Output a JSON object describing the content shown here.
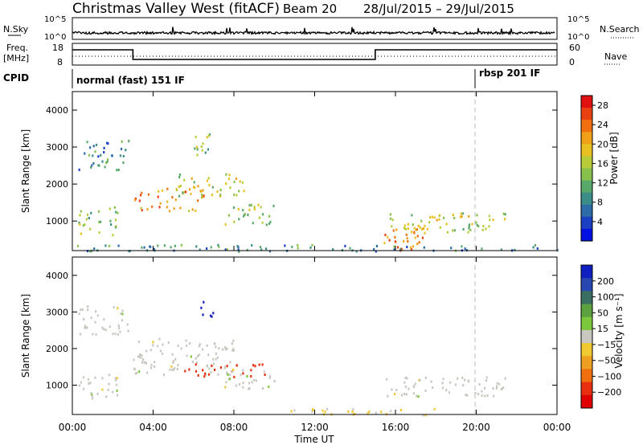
{
  "header": {
    "station": "Christmas Valley West (fitACF)",
    "beam": "Beam 20",
    "date_range": "28/Jul/2015 – 29/Jul/2015"
  },
  "top_strip": {
    "nsky_label": "N.Sky",
    "nsky_ticks": [
      "10^5",
      "10^0"
    ],
    "nsearch_label": "N.Search",
    "freq_label_1": "Freq.",
    "freq_label_2": "[MHz]",
    "freq_ticks": [
      "18",
      "8"
    ],
    "freq_right_ticks": [
      "60",
      "0"
    ],
    "nave_label": "Nave",
    "cpid_label": "CPID",
    "cpid_segments": [
      {
        "label": "normal (fast) 151 IF",
        "start_hour": 0,
        "end_hour": 20.0
      },
      {
        "label": "rbsp 201 IF",
        "start_hour": 20.0,
        "end_hour": 24
      }
    ],
    "freq_steps": [
      {
        "from_hour": 0,
        "to_hour": 3.0,
        "level": "high"
      },
      {
        "from_hour": 3.0,
        "to_hour": 15.0,
        "level": "low"
      },
      {
        "from_hour": 15.0,
        "to_hour": 24,
        "level": "high"
      }
    ]
  },
  "chart_data": [
    {
      "type": "heatmap",
      "name": "power",
      "ylabel": "Slant Range [km]",
      "xlabel": "",
      "ylim": [
        200,
        4500
      ],
      "xlim": [
        0,
        24
      ],
      "yticks": [
        "1000",
        "2000",
        "3000",
        "4000"
      ],
      "colorbar": {
        "label": "Power [dB]",
        "ticks": [
          "4",
          "8",
          "12",
          "16",
          "20",
          "24",
          "28"
        ],
        "colors": [
          "#0010e0",
          "#1a3fc0",
          "#2c6aa8",
          "#3b8d88",
          "#58a86a",
          "#88c04c",
          "#b8cc3a",
          "#e8c020",
          "#f0a018",
          "#f07010",
          "#e84010",
          "#e01010"
        ]
      },
      "echo_regions": [
        {
          "hours": [
            0.3,
            2.2
          ],
          "range_km": [
            650,
            1400
          ],
          "power_db": 14
        },
        {
          "hours": [
            0.3,
            2.8
          ],
          "range_km": [
            2400,
            3200
          ],
          "power_db": 8
        },
        {
          "hours": [
            3.0,
            6.5
          ],
          "range_km": [
            1300,
            1900
          ],
          "power_db": 22
        },
        {
          "hours": [
            5.0,
            8.5
          ],
          "range_km": [
            1700,
            2300
          ],
          "power_db": 16
        },
        {
          "hours": [
            6.0,
            7.0
          ],
          "range_km": [
            2700,
            3400
          ],
          "power_db": 14
        },
        {
          "hours": [
            7.5,
            10.0
          ],
          "range_km": [
            900,
            1500
          ],
          "power_db": 14
        },
        {
          "hours": [
            15.5,
            21.5
          ],
          "range_km": [
            700,
            1250
          ],
          "power_db": 16
        },
        {
          "hours": [
            15.3,
            17.5
          ],
          "range_km": [
            200,
            1000
          ],
          "power_db": 24
        },
        {
          "hours": [
            0,
            24
          ],
          "range_km": [
            200,
            380
          ],
          "power_db": 8
        }
      ]
    },
    {
      "type": "heatmap",
      "name": "velocity",
      "ylabel": "Slant Range [km]",
      "xlabel": "Time UT",
      "ylim": [
        200,
        4500
      ],
      "xlim": [
        0,
        24
      ],
      "yticks": [
        "1000",
        "2000",
        "3000",
        "4000"
      ],
      "xticks": [
        "00:00",
        "04:00",
        "08:00",
        "12:00",
        "16:00",
        "20:00",
        "00:00"
      ],
      "colorbar": {
        "label": "Velocity [m s⁻¹]",
        "ticks": [
          "200",
          "100",
          "50",
          "15",
          "−15",
          "−50",
          "−100",
          "−200"
        ],
        "colors": [
          "#1020c0",
          "#2848b0",
          "#3a6e60",
          "#5ca040",
          "#7cc83c",
          "#c8c8c0",
          "#f0c830",
          "#f0a020",
          "#f07010",
          "#e83010",
          "#e00000"
        ]
      },
      "echo_regions": [
        {
          "hours": [
            0.3,
            2.8
          ],
          "range_km": [
            2400,
            3200
          ],
          "velocity": 0
        },
        {
          "hours": [
            0.3,
            2.2
          ],
          "range_km": [
            650,
            1400
          ],
          "velocity": 0
        },
        {
          "hours": [
            3.0,
            8.0
          ],
          "range_km": [
            1300,
            2300
          ],
          "velocity": 0
        },
        {
          "hours": [
            6.2,
            7.0
          ],
          "range_km": [
            2900,
            3300
          ],
          "velocity": 200
        },
        {
          "hours": [
            5.5,
            9.5
          ],
          "range_km": [
            1250,
            1600
          ],
          "velocity": -150
        },
        {
          "hours": [
            7.5,
            10.0
          ],
          "range_km": [
            900,
            1500
          ],
          "velocity": 0
        },
        {
          "hours": [
            15.5,
            21.5
          ],
          "range_km": [
            700,
            1250
          ],
          "velocity": 0
        },
        {
          "hours": [
            10.0,
            18.0
          ],
          "range_km": [
            200,
            380
          ],
          "velocity": -20
        }
      ]
    }
  ]
}
